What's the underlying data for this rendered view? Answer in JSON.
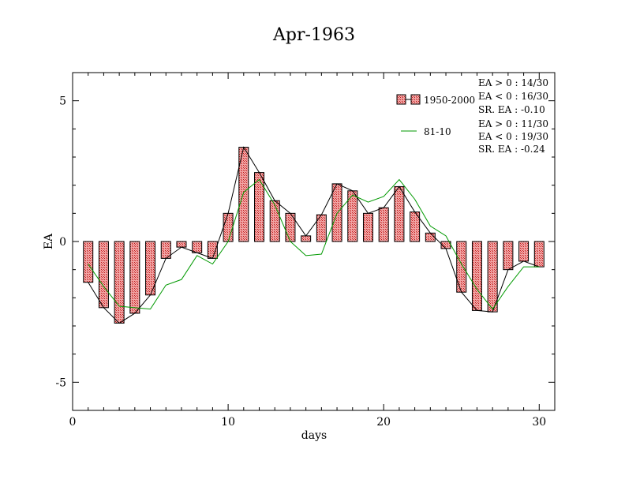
{
  "chart_data": {
    "type": "bar",
    "title": "Apr-1963",
    "xlabel": "days",
    "ylabel": "EA",
    "xlim": [
      0,
      31
    ],
    "ylim": [
      -6,
      6
    ],
    "x_ticks": [
      0,
      10,
      20,
      30
    ],
    "y_ticks": [
      -5,
      0,
      5
    ],
    "x_tick_labels": [
      "0",
      "10",
      "20",
      "30"
    ],
    "y_tick_labels": [
      "-5",
      "0",
      "5"
    ],
    "legend_position": "top-right",
    "days": [
      1,
      2,
      3,
      4,
      5,
      6,
      7,
      8,
      9,
      10,
      11,
      12,
      13,
      14,
      15,
      16,
      17,
      18,
      19,
      20,
      21,
      22,
      23,
      24,
      25,
      26,
      27,
      28,
      29,
      30
    ],
    "series": [
      {
        "name": "1950-2000",
        "kind": "bar",
        "color": "#e06666",
        "values": [
          -1.45,
          -2.35,
          -2.9,
          -2.55,
          -1.9,
          -0.6,
          -0.2,
          -0.4,
          -0.6,
          1.0,
          3.35,
          2.45,
          1.45,
          1.0,
          0.2,
          0.95,
          2.05,
          1.8,
          1.0,
          1.2,
          1.95,
          1.05,
          0.3,
          -0.25,
          -1.8,
          -2.45,
          -2.5,
          -1.0,
          -0.7,
          -0.9
        ]
      },
      {
        "name": "81-10",
        "kind": "line",
        "color": "#009900",
        "values": [
          -0.8,
          -1.6,
          -2.3,
          -2.35,
          -2.4,
          -1.55,
          -1.35,
          -0.5,
          -0.8,
          0.0,
          1.75,
          2.2,
          1.3,
          0.0,
          -0.5,
          -0.45,
          1.0,
          1.65,
          1.4,
          1.6,
          2.2,
          1.5,
          0.55,
          0.2,
          -0.8,
          -1.7,
          -2.4,
          -1.6,
          -0.9,
          -0.9
        ]
      }
    ],
    "stats": [
      {
        "series": "1950-2000",
        "lines": [
          "EA > 0 : 14/30",
          "EA < 0 : 16/30",
          "SR. EA : -0.10"
        ]
      },
      {
        "series": "81-10",
        "lines": [
          "EA > 0 : 11/30",
          "EA < 0 : 19/30",
          "SR. EA : -0.24"
        ]
      }
    ]
  }
}
